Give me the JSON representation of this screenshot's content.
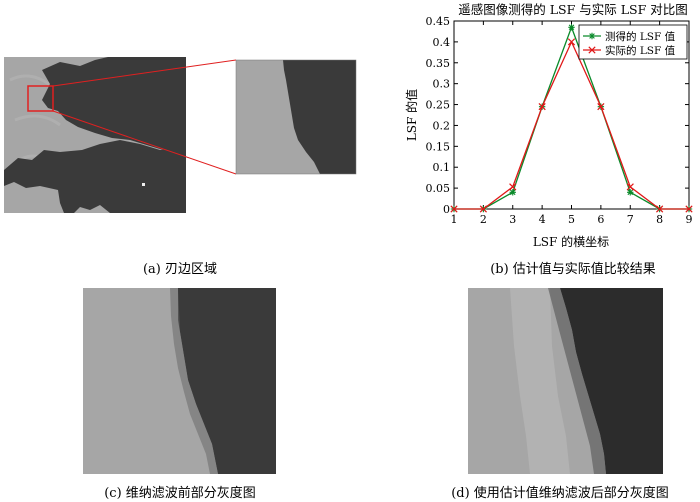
{
  "figure": {
    "caption_a": "(a) 刃边区域",
    "caption_b": "(b) 估计值与实际值比较结果",
    "caption_c": "(c) 维纳滤波前部分灰度图",
    "caption_d": "(d) 使用估计值维纳滤波后部分灰度图"
  },
  "colors": {
    "land": "#a6a6a6",
    "water": "#3a3a3a",
    "highlight": "#e02020",
    "measured": "#0a8a2a",
    "actual": "#e01818"
  },
  "chart_data": {
    "type": "line",
    "title": "遥感图像测得的 LSF 与实际 LSF 对比图",
    "xlabel": "LSF 的横坐标",
    "ylabel": "LSF 的值",
    "xlim": [
      1,
      9
    ],
    "ylim": [
      0,
      0.45
    ],
    "x": [
      1,
      2,
      3,
      4,
      5,
      6,
      7,
      8,
      9
    ],
    "xticks": [
      "1",
      "2",
      "3",
      "4",
      "5",
      "6",
      "7",
      "8",
      "9"
    ],
    "yticks": [
      "0",
      "0.05",
      "0.1",
      "0.15",
      "0.2",
      "0.25",
      "0.3",
      "0.35",
      "0.4",
      "0.45"
    ],
    "legend_position": "top-right",
    "grid": false,
    "series": [
      {
        "name": "测得的 LSF 值",
        "color": "#0a8a2a",
        "marker": "*",
        "values": [
          0,
          0,
          0.04,
          0.245,
          0.435,
          0.245,
          0.04,
          0,
          0
        ]
      },
      {
        "name": "实际的 LSF 值",
        "color": "#e01818",
        "marker": "x",
        "values": [
          0,
          0,
          0.053,
          0.245,
          0.4,
          0.245,
          0.053,
          0,
          0
        ]
      }
    ]
  }
}
